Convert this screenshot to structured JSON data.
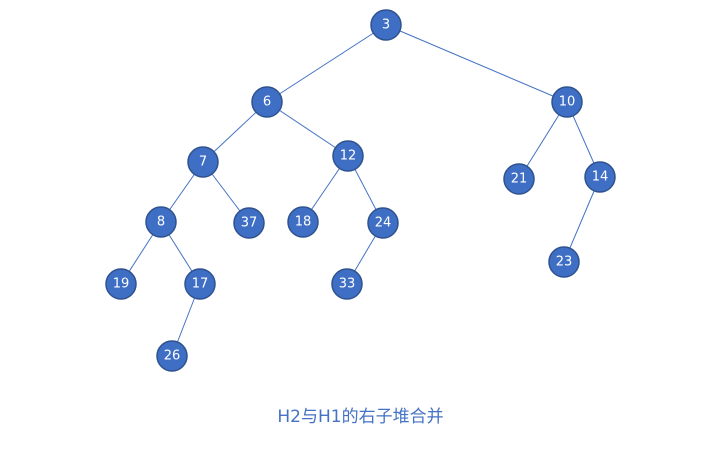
{
  "caption": "H2与H1的右子堆合并",
  "colors": {
    "node_fill": "#3f6fc4",
    "node_stroke": "#2f528f",
    "edge": "#4472c4",
    "label": "#ffffff",
    "caption": "#4472c4"
  },
  "tree": {
    "nodes": [
      {
        "id": "n3",
        "label": "3"
      },
      {
        "id": "n6",
        "label": "6"
      },
      {
        "id": "n10",
        "label": "10"
      },
      {
        "id": "n7",
        "label": "7"
      },
      {
        "id": "n12",
        "label": "12"
      },
      {
        "id": "n21",
        "label": "21"
      },
      {
        "id": "n14",
        "label": "14"
      },
      {
        "id": "n8",
        "label": "8"
      },
      {
        "id": "n37",
        "label": "37"
      },
      {
        "id": "n18",
        "label": "18"
      },
      {
        "id": "n24",
        "label": "24"
      },
      {
        "id": "n23",
        "label": "23"
      },
      {
        "id": "n19",
        "label": "19"
      },
      {
        "id": "n17",
        "label": "17"
      },
      {
        "id": "n33",
        "label": "33"
      },
      {
        "id": "n26",
        "label": "26"
      }
    ],
    "edges": [
      [
        "n3",
        "n6"
      ],
      [
        "n3",
        "n10"
      ],
      [
        "n6",
        "n7"
      ],
      [
        "n6",
        "n12"
      ],
      [
        "n10",
        "n21"
      ],
      [
        "n10",
        "n14"
      ],
      [
        "n7",
        "n8"
      ],
      [
        "n7",
        "n37"
      ],
      [
        "n12",
        "n18"
      ],
      [
        "n12",
        "n24"
      ],
      [
        "n14",
        "n23"
      ],
      [
        "n8",
        "n19"
      ],
      [
        "n8",
        "n17"
      ],
      [
        "n24",
        "n33"
      ],
      [
        "n17",
        "n26"
      ]
    ]
  }
}
